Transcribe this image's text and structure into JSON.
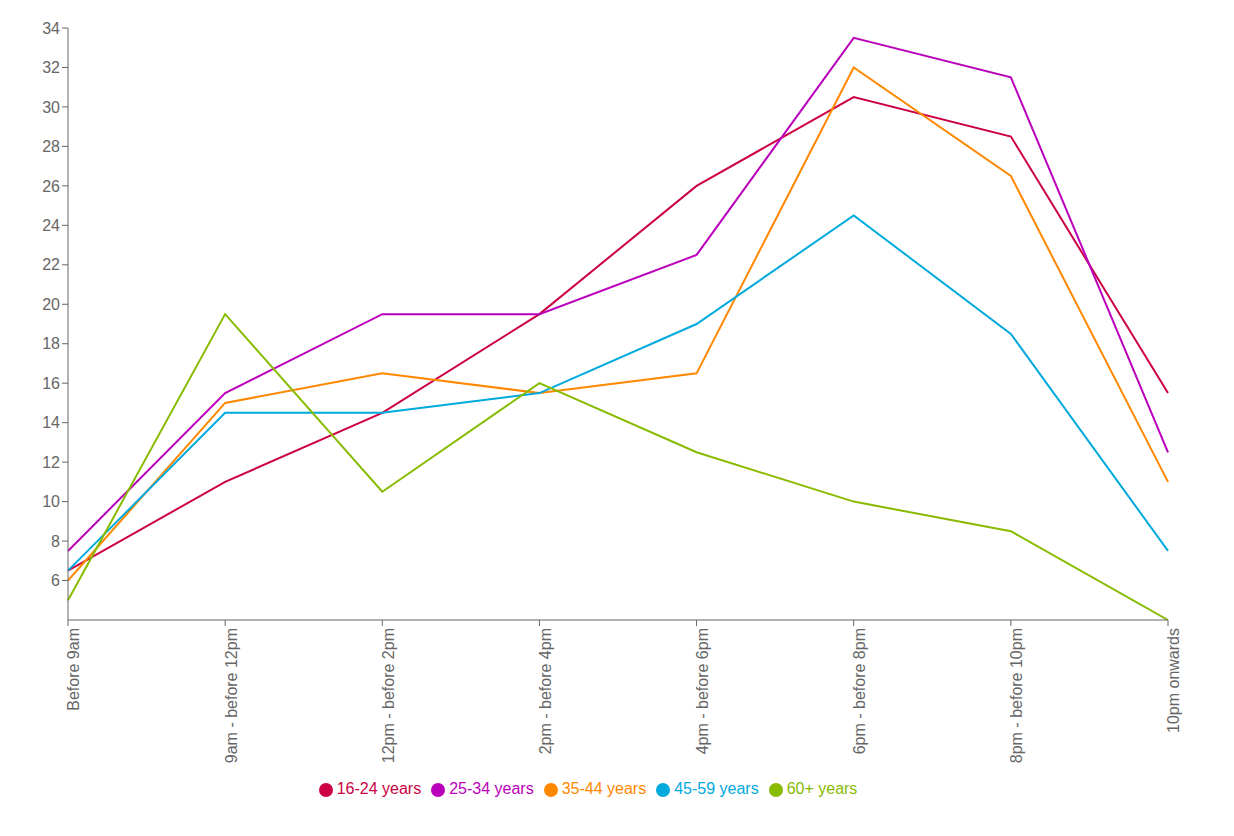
{
  "chart_data": {
    "type": "line",
    "categories": [
      "Before 9am",
      "9am - before 12pm",
      "12pm - before 2pm",
      "2pm - before 4pm",
      "4pm - before 6pm",
      "6pm - before 8pm",
      "8pm - before 10pm",
      "10pm onwards"
    ],
    "series": [
      {
        "name": "16-24 years",
        "color": "#cc0044",
        "values": [
          6.5,
          11,
          14.5,
          19.5,
          26,
          30.5,
          28.5,
          15.5
        ]
      },
      {
        "name": "25-34 years",
        "color": "#bb00bb",
        "values": [
          7.5,
          15.5,
          19.5,
          19.5,
          22.5,
          33.5,
          31.5,
          12.5
        ]
      },
      {
        "name": "35-44 years",
        "color": "#ff8800",
        "values": [
          6,
          15,
          16.5,
          15.5,
          16.5,
          32,
          26.5,
          11
        ]
      },
      {
        "name": "45-59 years",
        "color": "#00aadd",
        "values": [
          6.5,
          14.5,
          14.5,
          15.5,
          19,
          24.5,
          18.5,
          7.5
        ]
      },
      {
        "name": "60+ years",
        "color": "#88bb00",
        "values": [
          5,
          19.5,
          10.5,
          16,
          12.5,
          10,
          8.5,
          4
        ]
      }
    ],
    "ylim": [
      4,
      34
    ],
    "yticks": [
      6,
      8,
      10,
      12,
      14,
      16,
      18,
      20,
      22,
      24,
      26,
      28,
      30,
      32,
      34
    ],
    "grid": false,
    "legend": "bottom"
  }
}
